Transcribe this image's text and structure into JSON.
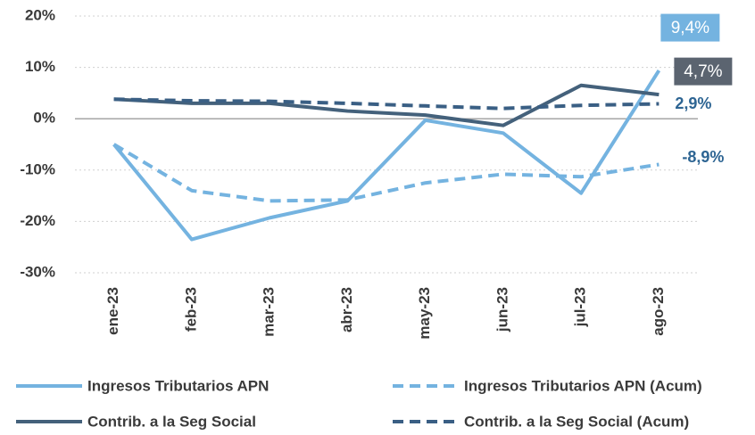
{
  "chart_data": {
    "type": "line",
    "categories": [
      "ene-23",
      "feb-23",
      "mar-23",
      "abr-23",
      "may-23",
      "jun-23",
      "jul-23",
      "ago-23"
    ],
    "ylim": [
      -30,
      20
    ],
    "yticks": [
      {
        "value": -30,
        "label": "-30%"
      },
      {
        "value": -20,
        "label": "-20%"
      },
      {
        "value": -10,
        "label": "-10%"
      },
      {
        "value": 0,
        "label": "0%"
      },
      {
        "value": 10,
        "label": "10%"
      },
      {
        "value": 20,
        "label": "20%"
      }
    ],
    "grid": true,
    "series": [
      {
        "name": "Ingresos Tributarios APN",
        "color": "#74b3e0",
        "dash": false,
        "values": [
          -5.0,
          -23.5,
          -19.3,
          -16.0,
          -0.3,
          -2.8,
          -14.5,
          9.4
        ],
        "value_labels": [
          null,
          null,
          null,
          null,
          null,
          null,
          null,
          "9,4%"
        ]
      },
      {
        "name": "Ingresos Tributarios APN (Acum)",
        "color": "#74b3e0",
        "dash": true,
        "values": [
          -5.0,
          -14.0,
          -16.0,
          -15.8,
          -12.5,
          -10.8,
          -11.3,
          -8.9
        ],
        "value_labels": [
          null,
          null,
          null,
          null,
          null,
          null,
          null,
          "-8,9%"
        ]
      },
      {
        "name": "Contrib. a la Seg Social",
        "color": "#44617b",
        "dash": false,
        "values": [
          3.8,
          3.0,
          3.0,
          1.5,
          0.7,
          -1.3,
          6.5,
          4.7
        ],
        "value_labels": [
          null,
          null,
          null,
          null,
          null,
          null,
          null,
          "4,7%"
        ]
      },
      {
        "name": "Contrib. a la Seg Social (Acum)",
        "color": "#3a5f84",
        "dash": true,
        "values": [
          3.8,
          3.5,
          3.4,
          3.0,
          2.5,
          2.0,
          2.6,
          2.9
        ],
        "value_labels": [
          null,
          null,
          null,
          null,
          null,
          null,
          null,
          "2,9%"
        ]
      }
    ]
  }
}
